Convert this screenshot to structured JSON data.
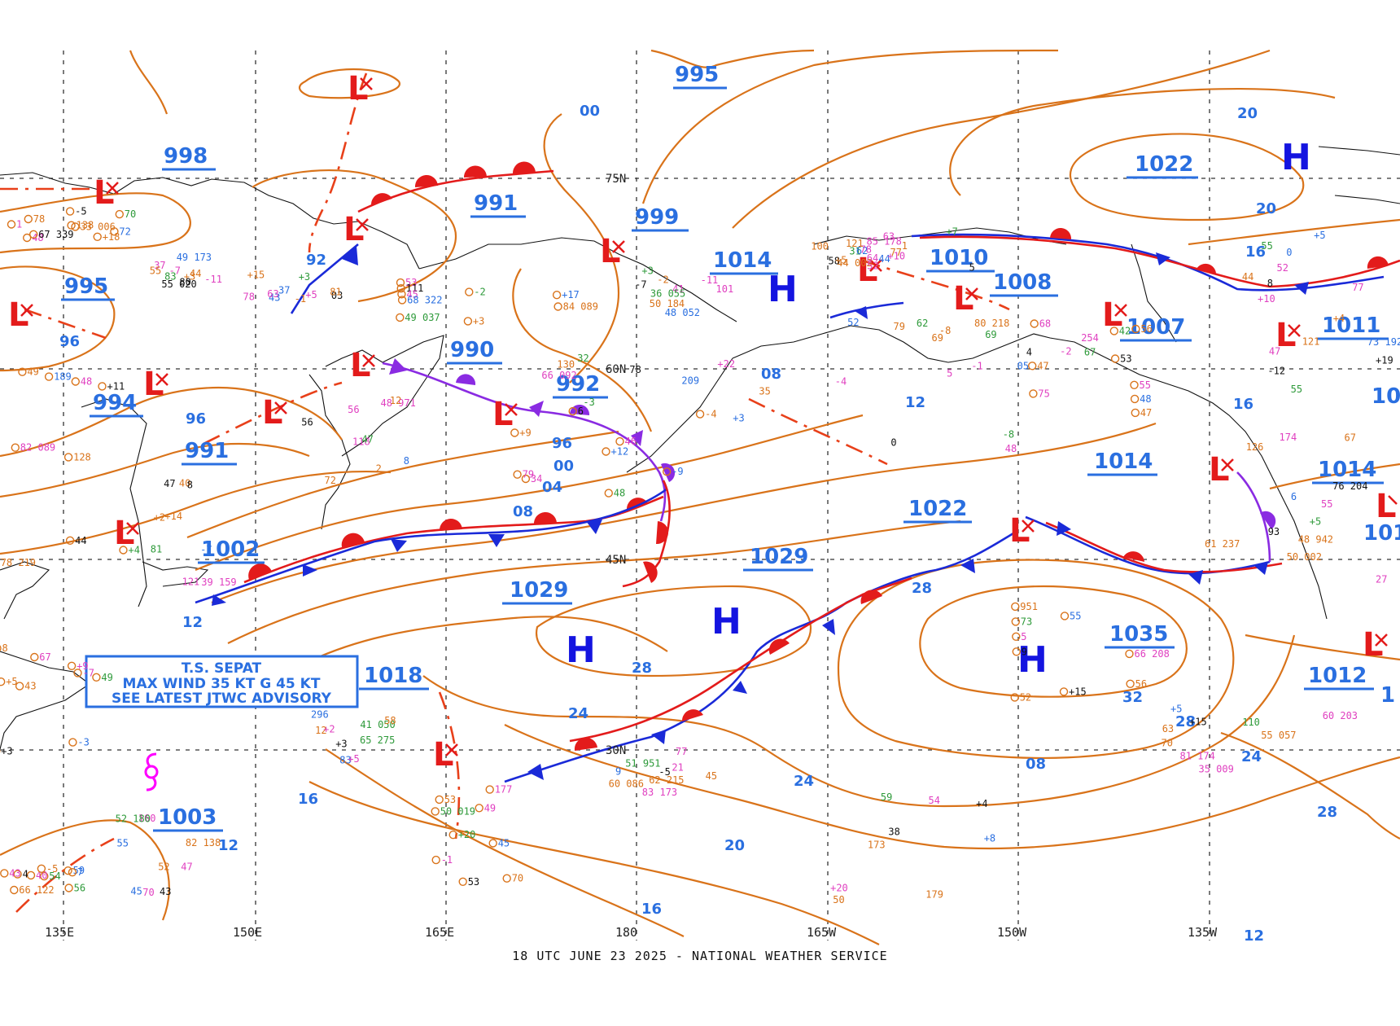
{
  "footer": "18 UTC JUNE 23 2025 - NATIONAL WEATHER SERVICE",
  "colors": {
    "isobar": "#d9731a",
    "pressure_label": "#2a6fe0",
    "high": "#1414e0",
    "low": "#e31b1b",
    "cold_front": "#1a2ad8",
    "warm_front": "#e31b1b",
    "occluded_front": "#8a2be2",
    "trough": "#e8401a",
    "tropical": "#ff00ff"
  },
  "latitudes": [
    {
      "label": "75N"
    },
    {
      "label": "60N"
    },
    {
      "label": "45N"
    },
    {
      "label": "30N"
    }
  ],
  "longitudes": [
    {
      "label": "135E"
    },
    {
      "label": "150E"
    },
    {
      "label": "165E"
    },
    {
      "label": "180"
    },
    {
      "label": "165W"
    },
    {
      "label": "150W"
    },
    {
      "label": "135W"
    }
  ],
  "isobar_labels": [
    "00",
    "92",
    "96",
    "96",
    "96",
    "00",
    "04",
    "08",
    "12",
    "08",
    "12",
    "16",
    "20",
    "20",
    "24",
    "24",
    "24",
    "28",
    "28",
    "28",
    "32",
    "20",
    "16",
    "12",
    "16",
    "16",
    "08",
    "28",
    "12"
  ],
  "central_pressures": [
    "995",
    "998",
    "991",
    "999",
    "1014",
    "1010",
    "1008",
    "1022",
    "1007",
    "1011",
    "995",
    "991",
    "990",
    "992",
    "994",
    "991",
    "1002",
    "1029",
    "1029",
    "1022",
    "1014",
    "1014",
    "1018",
    "1035",
    "1012",
    "1003",
    "10",
    "101",
    "1"
  ],
  "highs": [
    "H",
    "H",
    "H",
    "H",
    "H",
    "H"
  ],
  "lows": [
    "L",
    "L",
    "L",
    "L",
    "L",
    "L",
    "L",
    "L",
    "L",
    "L",
    "L",
    "L",
    "L",
    "L",
    "L",
    "L",
    "L",
    "L",
    "L",
    "L"
  ],
  "storm_box": {
    "line1": "T.S. SEPAT",
    "line2": "MAX WIND 35 KT G 45 KT",
    "line3": "SEE LATEST JTWC ADVISORY"
  },
  "tropical_symbol": "tropical-storm-icon",
  "station_texts": [
    "33 006",
    "37",
    "37",
    "49 037",
    "41",
    "44 002",
    "+11",
    "40",
    "48 971",
    "+12",
    "32",
    "48",
    "47",
    "+19",
    "50 002",
    "+9",
    "45",
    "41 050",
    "49",
    "60 086",
    "38",
    "52",
    "35 009",
    "+5",
    "54",
    "-2",
    "100",
    "-5",
    "55",
    "+5",
    "+17",
    "36 055",
    "52",
    "128",
    "47",
    "12",
    "34",
    "+3",
    "-8",
    "55",
    "121",
    "93",
    "43",
    "47",
    "83",
    "50 019",
    "21",
    "50",
    "+15",
    "55 057",
    "+10",
    "59",
    "62",
    "64",
    "+18",
    "55 020",
    "+15",
    "53",
    "48 052",
    "+7",
    "48",
    "+14",
    "56",
    "+9",
    "+22",
    "52",
    "42",
    "47",
    "48 942",
    "+3",
    "52",
    "+5",
    "45",
    "51 951",
    "+20",
    "951",
    "+15",
    "44",
    "40",
    "05",
    "31",
    "48",
    "44",
    "03",
    "+3",
    "101",
    "44",
    "+4",
    "121",
    "2",
    "6",
    "35",
    "5",
    "48",
    "55",
    "27",
    "+5",
    "43",
    "58",
    "177",
    "9",
    "59",
    "66 208",
    "63",
    "8",
    "66 122",
    "-1",
    "62",
    "70",
    "-7",
    "81",
    "111",
    "-2",
    "78",
    "189",
    "81",
    "118",
    "-4",
    "78",
    "79",
    "75",
    "73 192",
    "+5",
    "67",
    "82 138",
    "+3",
    "70",
    "83 173",
    "+8",
    "73",
    "81 174",
    "+4",
    "4",
    "80 218",
    "+10",
    "72",
    "83",
    "78",
    "84 089",
    "-7",
    "77",
    "82 089",
    "-7",
    "47",
    "46",
    "130",
    "0",
    "47",
    "174",
    "6",
    "49",
    "160",
    "12",
    "53",
    "45",
    "54",
    "55",
    "110",
    "52",
    "-5",
    "4",
    "121",
    "1",
    "49 173",
    "+3",
    "45",
    "50 184",
    "5",
    "49",
    "39 159",
    "8",
    "48",
    "66 092",
    "-8",
    "53",
    "126",
    "55",
    "-3",
    "52 180",
    "+2",
    "53",
    "-5",
    "179",
    "5",
    "+5",
    "55",
    "43",
    "69",
    "58",
    "138",
    "-11",
    "43",
    "-2",
    "-11",
    "1",
    "44",
    "+2",
    "56",
    "-9",
    "-3",
    "-4",
    "56",
    "-12",
    "61 237",
    "-7",
    "55",
    "65 275",
    "-1",
    "62 215",
    "+4",
    "56",
    "60 203",
    "0",
    "56",
    "254",
    "+5",
    "67 339",
    "+3",
    "63",
    "68 322",
    "+3",
    "63",
    "78 219",
    "8",
    "72",
    "79",
    "209",
    "69",
    "68",
    "67",
    "76 204",
    "8",
    "70",
    "296",
    "+20",
    "77",
    "173",
    "9",
    "70",
    "77",
    "7",
    "67",
    "85 178",
    "78",
    "80",
    "-1"
  ]
}
